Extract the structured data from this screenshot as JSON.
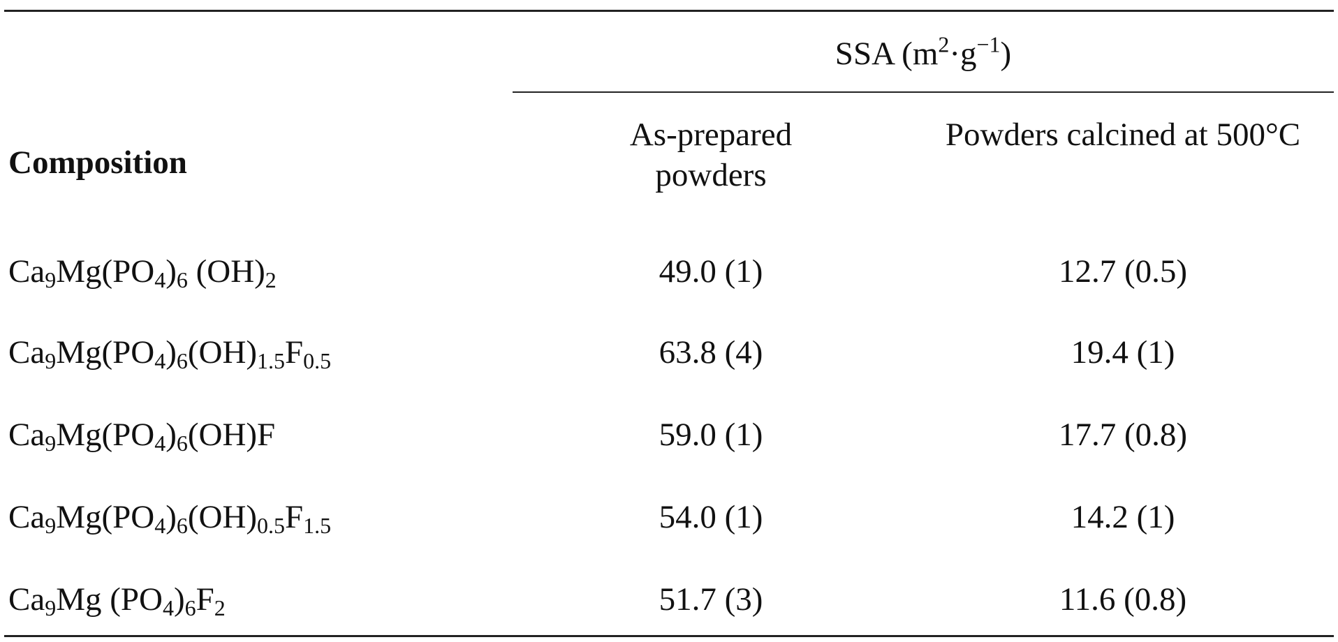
{
  "table": {
    "group_header": [
      {
        "t": "SSA (m"
      },
      {
        "sup": "2"
      },
      {
        "t": "·g"
      },
      {
        "sup": "−1"
      },
      {
        "t": ")"
      }
    ],
    "columns": [
      "Composition",
      "As-prepared powders",
      "Powders calcined at 500°C"
    ],
    "rows": [
      [
        [
          {
            "t": "Ca"
          },
          {
            "sub": "9"
          },
          {
            "t": "Mg(PO"
          },
          {
            "sub": "4"
          },
          {
            "t": ")"
          },
          {
            "sub": "6"
          },
          {
            "t": " (OH)"
          },
          {
            "sub": "2"
          }
        ],
        "49.0 (1)",
        "12.7 (0.5)"
      ],
      [
        [
          {
            "t": "Ca"
          },
          {
            "sub": "9"
          },
          {
            "t": "Mg(PO"
          },
          {
            "sub": "4"
          },
          {
            "t": ")"
          },
          {
            "sub": "6"
          },
          {
            "t": "(OH)"
          },
          {
            "sub": "1.5"
          },
          {
            "t": "F"
          },
          {
            "sub": "0.5"
          }
        ],
        "63.8 (4)",
        "19.4 (1)"
      ],
      [
        [
          {
            "t": "Ca"
          },
          {
            "sub": "9"
          },
          {
            "t": "Mg(PO"
          },
          {
            "sub": "4"
          },
          {
            "t": ")"
          },
          {
            "sub": "6"
          },
          {
            "t": "(OH)F"
          }
        ],
        "59.0 (1)",
        "17.7 (0.8)"
      ],
      [
        [
          {
            "t": "Ca"
          },
          {
            "sub": "9"
          },
          {
            "t": "Mg(PO"
          },
          {
            "sub": "4"
          },
          {
            "t": ")"
          },
          {
            "sub": "6"
          },
          {
            "t": "(OH)"
          },
          {
            "sub": "0.5"
          },
          {
            "t": "F"
          },
          {
            "sub": "1.5"
          }
        ],
        "54.0 (1)",
        "14.2 (1)"
      ],
      [
        [
          {
            "t": "Ca"
          },
          {
            "sub": "9"
          },
          {
            "t": "Mg (PO"
          },
          {
            "sub": "4"
          },
          {
            "t": ")"
          },
          {
            "sub": "6"
          },
          {
            "t": "F"
          },
          {
            "sub": "2"
          }
        ],
        "51.7 (3)",
        "11.6 (0.8)"
      ]
    ]
  }
}
